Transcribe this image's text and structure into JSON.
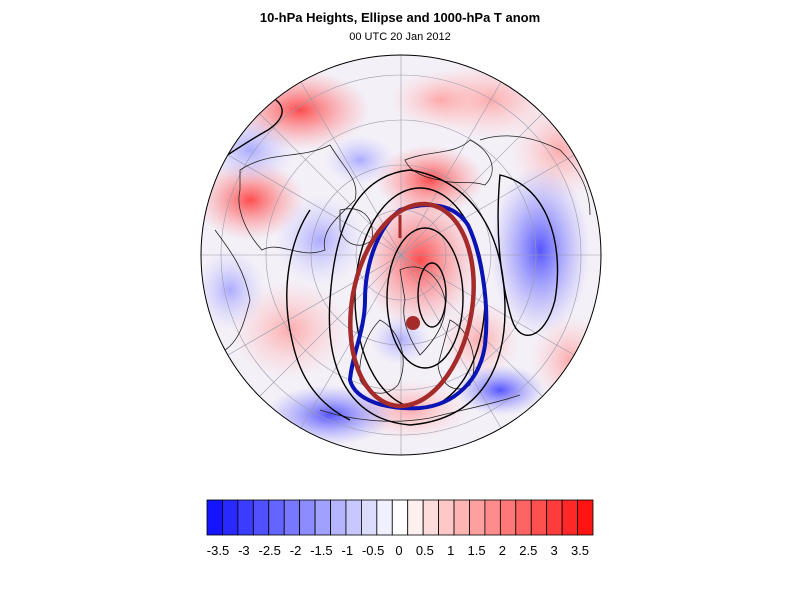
{
  "header": {
    "title": "10-hPa Heights, Ellipse and 1000-hPa T anom",
    "subtitle": "00 UTC 20 Jan 2012"
  },
  "map": {
    "projection": "polar stereographic (north pole)",
    "fill_variable": "1000-hPa T anom",
    "contour_variable": "10-hPa Heights",
    "overlays": [
      "blue vortex edge contour",
      "red fitted ellipse",
      "ellipse centroid marker"
    ],
    "colors": {
      "ellipse": "#a52a2a",
      "vortex_edge": "#0a14b4",
      "contours": "#000000",
      "warm_max": "#ff0000",
      "cold_max": "#0000ff"
    }
  },
  "colorbar": {
    "tick_labels": [
      "-3.5",
      "-3",
      "-2.5",
      "-2",
      "-1.5",
      "-1",
      "-0.5",
      "0",
      "0.5",
      "1",
      "1.5",
      "2",
      "2.5",
      "3",
      "3.5"
    ],
    "colors": [
      "#1414ff",
      "#2828ff",
      "#3c3cff",
      "#5050ff",
      "#6464ff",
      "#7878ff",
      "#8c8cff",
      "#a0a0ff",
      "#b4b4ff",
      "#c8c8ff",
      "#dcdcff",
      "#f0f0ff",
      "#ffffff",
      "#fff0f0",
      "#ffdcdc",
      "#ffc8c8",
      "#ffb4b4",
      "#ffa0a0",
      "#ff8c8c",
      "#ff7878",
      "#ff6464",
      "#ff5050",
      "#ff3c3c",
      "#ff2828",
      "#ff1414"
    ]
  }
}
